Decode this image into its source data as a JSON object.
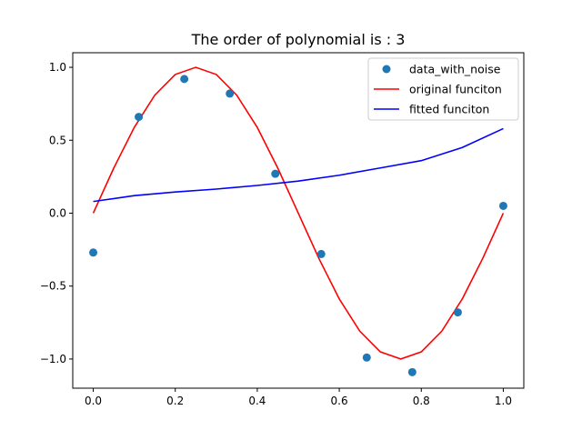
{
  "chart_data": {
    "type": "line",
    "title": "The order of polynomial is : 3",
    "xlabel": "",
    "ylabel": "",
    "xlim": [
      -0.05,
      1.05
    ],
    "ylim": [
      -1.2,
      1.1
    ],
    "grid": false,
    "legend_position": "top-right",
    "xticks": [
      {
        "value": 0.0,
        "label": "0.0"
      },
      {
        "value": 0.2,
        "label": "0.2"
      },
      {
        "value": 0.4,
        "label": "0.4"
      },
      {
        "value": 0.6,
        "label": "0.6"
      },
      {
        "value": 0.8,
        "label": "0.8"
      },
      {
        "value": 1.0,
        "label": "1.0"
      }
    ],
    "yticks": [
      {
        "value": 1.0,
        "label": "1.0"
      },
      {
        "value": 0.5,
        "label": "0.5"
      },
      {
        "value": 0.0,
        "label": "0.0"
      },
      {
        "value": -0.5,
        "label": "−0.5"
      },
      {
        "value": -1.0,
        "label": "−1.0"
      }
    ],
    "series": [
      {
        "name": "data_with_noise",
        "kind": "scatter",
        "color": "#1f77b4",
        "x": [
          0.0,
          0.111,
          0.222,
          0.333,
          0.444,
          0.556,
          0.667,
          0.778,
          0.889,
          1.0
        ],
        "y": [
          -0.27,
          0.66,
          0.92,
          0.82,
          0.27,
          -0.28,
          -0.99,
          -1.09,
          -0.68,
          0.05
        ]
      },
      {
        "name": "original funciton",
        "kind": "line",
        "color": "#ff0000",
        "x": [
          0.0,
          0.05,
          0.1,
          0.15,
          0.2,
          0.25,
          0.3,
          0.35,
          0.4,
          0.45,
          0.5,
          0.55,
          0.6,
          0.65,
          0.7,
          0.75,
          0.8,
          0.85,
          0.9,
          0.95,
          1.0
        ],
        "y": [
          0.0,
          0.309,
          0.588,
          0.809,
          0.951,
          1.0,
          0.951,
          0.809,
          0.588,
          0.309,
          0.0,
          -0.309,
          -0.588,
          -0.809,
          -0.951,
          -1.0,
          -0.951,
          -0.809,
          -0.588,
          -0.309,
          0.0
        ]
      },
      {
        "name": "fitted funciton",
        "kind": "line",
        "color": "#0000ff",
        "x": [
          0.0,
          0.1,
          0.2,
          0.3,
          0.4,
          0.5,
          0.6,
          0.7,
          0.8,
          0.9,
          1.0
        ],
        "y": [
          0.08,
          0.12,
          0.145,
          0.165,
          0.19,
          0.22,
          0.26,
          0.31,
          0.36,
          0.45,
          0.58
        ]
      }
    ]
  }
}
